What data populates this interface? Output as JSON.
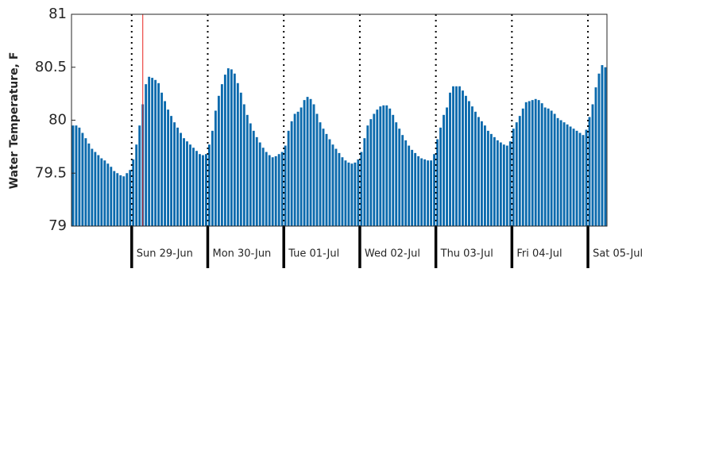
{
  "chart_data": {
    "type": "bar",
    "y_label": "Water Temperature, F",
    "color": "#0b6aad",
    "marker_x": 3.5,
    "marker_color": "#e8231f",
    "xlim": [
      -19,
      150
    ],
    "ylim": [
      79,
      81
    ],
    "yticks": [
      79,
      79.5,
      80,
      80.5,
      81
    ],
    "xticks": [
      {
        "value": 0,
        "label": "Sun 29-Jun"
      },
      {
        "value": 24,
        "label": "Mon 30-Jun"
      },
      {
        "value": 48,
        "label": "Tue 01-Jul"
      },
      {
        "value": 72,
        "label": "Wed 02-Jul"
      },
      {
        "value": 96,
        "label": "Thu 03-Jul"
      },
      {
        "value": 120,
        "label": "Fri 04-Jul"
      },
      {
        "value": 144,
        "label": "Sat 05-Jul"
      }
    ],
    "x": [
      -19,
      -18,
      -17,
      -16,
      -15,
      -14,
      -13,
      -12,
      -11,
      -10,
      -9,
      -8,
      -7,
      -6,
      -5,
      -4,
      -3,
      -2,
      -1,
      0,
      1,
      2,
      3,
      4,
      5,
      6,
      7,
      8,
      9,
      10,
      11,
      12,
      13,
      14,
      15,
      16,
      17,
      18,
      19,
      20,
      21,
      22,
      23,
      24,
      25,
      26,
      27,
      28,
      29,
      30,
      31,
      32,
      33,
      34,
      35,
      36,
      37,
      38,
      39,
      40,
      41,
      42,
      43,
      44,
      45,
      46,
      47,
      48,
      49,
      50,
      51,
      52,
      53,
      54,
      55,
      56,
      57,
      58,
      59,
      60,
      61,
      62,
      63,
      64,
      65,
      66,
      67,
      68,
      69,
      70,
      71,
      72,
      73,
      74,
      75,
      76,
      77,
      78,
      79,
      80,
      81,
      82,
      83,
      84,
      85,
      86,
      87,
      88,
      89,
      90,
      91,
      92,
      93,
      94,
      95,
      96,
      97,
      98,
      99,
      100,
      101,
      102,
      103,
      104,
      105,
      106,
      107,
      108,
      109,
      110,
      111,
      112,
      113,
      114,
      115,
      116,
      117,
      118,
      119,
      120,
      121,
      122,
      123,
      124,
      125,
      126,
      127,
      128,
      129,
      130,
      131,
      132,
      133,
      134,
      135,
      136,
      137,
      138,
      139,
      140,
      141,
      142,
      143,
      144,
      145,
      146,
      147,
      148,
      149
    ],
    "values": [
      79.95,
      79.95,
      79.93,
      79.88,
      79.83,
      79.78,
      79.73,
      79.7,
      79.67,
      79.64,
      79.62,
      79.59,
      79.56,
      79.52,
      79.5,
      79.48,
      79.47,
      79.5,
      79.53,
      79.63,
      79.77,
      79.95,
      80.15,
      80.34,
      80.41,
      80.4,
      80.38,
      80.35,
      80.26,
      80.18,
      80.1,
      80.04,
      79.98,
      79.93,
      79.88,
      79.83,
      79.8,
      79.77,
      79.74,
      79.71,
      79.68,
      79.67,
      79.68,
      79.77,
      79.9,
      80.09,
      80.23,
      80.34,
      80.43,
      80.49,
      80.48,
      80.44,
      80.35,
      80.26,
      80.15,
      80.05,
      79.97,
      79.9,
      79.84,
      79.79,
      79.74,
      79.7,
      79.67,
      79.65,
      79.66,
      79.68,
      79.7,
      79.76,
      79.9,
      79.99,
      80.06,
      80.08,
      80.12,
      80.19,
      80.22,
      80.2,
      80.15,
      80.06,
      79.98,
      79.92,
      79.87,
      79.82,
      79.77,
      79.73,
      79.69,
      79.65,
      79.62,
      79.6,
      79.59,
      79.6,
      79.63,
      79.7,
      79.83,
      79.95,
      80.01,
      80.06,
      80.1,
      80.13,
      80.14,
      80.14,
      80.11,
      80.05,
      79.98,
      79.92,
      79.86,
      79.81,
      79.76,
      79.72,
      79.69,
      79.66,
      79.64,
      79.63,
      79.62,
      79.62,
      79.68,
      79.82,
      79.93,
      80.05,
      80.12,
      80.26,
      80.32,
      80.32,
      80.32,
      80.28,
      80.23,
      80.18,
      80.13,
      80.08,
      80.03,
      79.99,
      79.95,
      79.9,
      79.87,
      79.84,
      79.81,
      79.79,
      79.77,
      79.76,
      79.8,
      79.92,
      79.98,
      80.04,
      80.11,
      80.17,
      80.18,
      80.19,
      80.2,
      80.19,
      80.16,
      80.12,
      80.11,
      80.09,
      80.06,
      80.02,
      80.0,
      79.98,
      79.96,
      79.94,
      79.92,
      79.9,
      79.88,
      79.86,
      79.91,
      80.03,
      80.15,
      80.31,
      80.44,
      80.52,
      80.5
    ]
  }
}
